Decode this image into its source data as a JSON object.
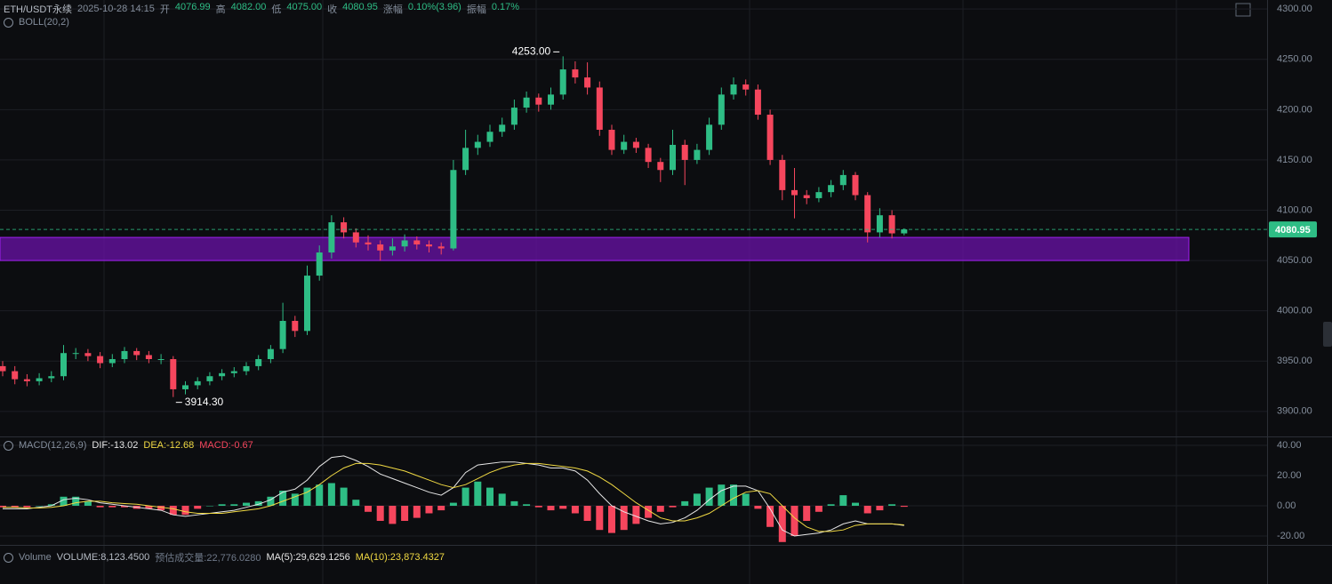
{
  "header": {
    "symbol": "ETH/USDT永续",
    "time": "2025-10-28 14:15",
    "fields": [
      {
        "label": "开",
        "value": "4076.99"
      },
      {
        "label": "高",
        "value": "4082.00"
      },
      {
        "label": "低",
        "value": "4075.00"
      },
      {
        "label": "收",
        "value": "4080.95"
      },
      {
        "label": "涨幅",
        "value": "0.10%(3.96)"
      },
      {
        "label": "振幅",
        "value": "0.17%"
      }
    ]
  },
  "chart_data": [
    {
      "type": "candlestick",
      "indicator": "BOLL(20,2)",
      "up_color": "#2ebd85",
      "down_color": "#f6465d",
      "open": [
        3945,
        3940,
        3932,
        3930,
        3933,
        3935,
        3958,
        3958,
        3955,
        3948,
        3952,
        3960,
        3956,
        3952,
        3952,
        3922,
        3926,
        3930,
        3935,
        3938,
        3940,
        3945,
        3952,
        3962,
        3990,
        3980,
        4035,
        4058,
        4088,
        4078,
        4068,
        4066,
        4060,
        4064,
        4070,
        4066,
        4064,
        4062,
        4140,
        4162,
        4168,
        4178,
        4185,
        4202,
        4212,
        4205,
        4215,
        4240,
        4232,
        4222,
        4180,
        4160,
        4168,
        4162,
        4148,
        4140,
        4165,
        4150,
        4160,
        4185,
        4215,
        4225,
        4220,
        4195,
        4150,
        4120,
        4115,
        4112,
        4118,
        4125,
        4135,
        4115,
        4078,
        4095,
        4076.99
      ],
      "high": [
        3950,
        3945,
        3937,
        3938,
        3940,
        3966,
        3963,
        3962,
        3959,
        3957,
        3964,
        3963,
        3960,
        3957,
        3955,
        3930,
        3934,
        3939,
        3942,
        3944,
        3949,
        3956,
        3966,
        4008,
        3995,
        4045,
        4065,
        4095,
        4093,
        4082,
        4075,
        4070,
        4072,
        4076,
        4074,
        4070,
        4068,
        4150,
        4180,
        4175,
        4185,
        4192,
        4210,
        4218,
        4216,
        4222,
        4253,
        4248,
        4247,
        4228,
        4185,
        4175,
        4172,
        4166,
        4152,
        4180,
        4170,
        4166,
        4192,
        4222,
        4232,
        4230,
        4225,
        4200,
        4155,
        4142,
        4120,
        4123,
        4130,
        4140,
        4138,
        4118,
        4102,
        4100,
        4082
      ],
      "low": [
        3935,
        3927,
        3925,
        3926,
        3929,
        3931,
        3952,
        3950,
        3943,
        3944,
        3948,
        3951,
        3948,
        3947,
        3914.3,
        3917,
        3922,
        3926,
        3931,
        3934,
        3936,
        3941,
        3948,
        3958,
        3974,
        3976,
        4030,
        4052,
        4072,
        4063,
        4060,
        4050,
        4055,
        4059,
        4061,
        4058,
        4056,
        4060,
        4135,
        4155,
        4163,
        4173,
        4180,
        4197,
        4198,
        4200,
        4210,
        4226,
        4215,
        4174,
        4155,
        4156,
        4157,
        4142,
        4128,
        4135,
        4125,
        4146,
        4155,
        4180,
        4210,
        4214,
        4190,
        4145,
        4110,
        4092,
        4106,
        4108,
        4113,
        4120,
        4110,
        4068,
        4073,
        4072,
        4075
      ],
      "close": [
        3940,
        3932,
        3930,
        3933,
        3935,
        3958,
        3958,
        3955,
        3948,
        3952,
        3960,
        3956,
        3952,
        3952,
        3922,
        3926,
        3930,
        3935,
        3938,
        3940,
        3945,
        3952,
        3962,
        3990,
        3980,
        4035,
        4058,
        4088,
        4078,
        4068,
        4066,
        4060,
        4064,
        4070,
        4066,
        4064,
        4062,
        4140,
        4162,
        4168,
        4178,
        4185,
        4202,
        4212,
        4205,
        4215,
        4240,
        4232,
        4222,
        4180,
        4160,
        4168,
        4162,
        4148,
        4140,
        4165,
        4150,
        4160,
        4185,
        4215,
        4225,
        4220,
        4195,
        4150,
        4120,
        4115,
        4112,
        4118,
        4125,
        4135,
        4115,
        4078,
        4095,
        4077,
        4080.95
      ],
      "ylim": [
        3876,
        4309
      ],
      "yticks": [
        {
          "value": 4300,
          "label": "4300.00"
        },
        {
          "value": 4250,
          "label": "4250.00"
        },
        {
          "value": 4200,
          "label": "4200.00"
        },
        {
          "value": 4150,
          "label": "4150.00"
        },
        {
          "value": 4100,
          "label": "4100.00"
        },
        {
          "value": 4050,
          "label": "4050.00"
        },
        {
          "value": 4000,
          "label": "4000.00"
        },
        {
          "value": 3950,
          "label": "3950.00"
        },
        {
          "value": 3900,
          "label": "3900.00"
        }
      ],
      "last_price": {
        "value": 4080.95,
        "label": "4080.95"
      },
      "zone": [
        4050,
        4073
      ],
      "zone_color": "#6a12a8",
      "annotations": [
        {
          "value": 4253,
          "label": "4253.00",
          "kind": "high"
        },
        {
          "value": 3914.3,
          "label": "3914.30",
          "kind": "low"
        }
      ]
    },
    {
      "type": "macd",
      "indicator": "MACD(12,26,9)",
      "ylim": [
        -25.3,
        44.7
      ],
      "yticks": [
        {
          "value": 40,
          "label": "40.00"
        },
        {
          "value": 20,
          "label": "20.00"
        },
        {
          "value": 0,
          "label": "0.00"
        },
        {
          "value": -20,
          "label": "-20.00"
        }
      ],
      "series": [
        {
          "label": "DIF:-13.02",
          "color": "#e6e6e6",
          "values": [
            -2,
            -2,
            -2,
            -1,
            0,
            4,
            5,
            4,
            2,
            1,
            0,
            -1,
            -2,
            -3,
            -6,
            -7,
            -6,
            -5,
            -4,
            -3,
            -1,
            1,
            4,
            9,
            11,
            17,
            26,
            32,
            33,
            30,
            26,
            21,
            18,
            15,
            12,
            9,
            7,
            12,
            22,
            27,
            28,
            29,
            29,
            28,
            27,
            25,
            25,
            23,
            17,
            8,
            0,
            -4,
            -7,
            -10,
            -12,
            -11,
            -8,
            -3,
            4,
            10,
            13,
            13,
            10,
            -2,
            -16,
            -20,
            -19,
            -18,
            -16,
            -12,
            -10,
            -12,
            -12,
            -12,
            -13.02
          ]
        },
        {
          "label": "DEA:-12.68",
          "color": "#f0d943",
          "values": [
            -1,
            -1,
            -1.5,
            -1.5,
            -1,
            0,
            2,
            3,
            3,
            2,
            1.5,
            1,
            0,
            -1,
            -2,
            -4,
            -5,
            -5,
            -5,
            -4,
            -3,
            -2,
            0,
            3,
            6,
            9,
            14,
            20,
            25,
            28,
            28,
            27,
            25,
            23,
            20,
            17,
            14,
            12,
            14,
            18,
            22,
            25,
            27,
            28,
            28,
            27,
            26,
            25,
            23,
            19,
            14,
            8,
            2,
            -3,
            -8,
            -10,
            -10,
            -8,
            -5,
            0,
            5,
            9,
            10,
            8,
            0,
            -8,
            -14,
            -17,
            -17,
            -16,
            -13,
            -12,
            -12,
            -12,
            -12.68
          ]
        }
      ],
      "histogram": {
        "label": "MACD:-0.67",
        "up_color": "#2ebd85",
        "down_color": "#f6465d",
        "values": [
          -1,
          -1,
          -1,
          0,
          1,
          6,
          6,
          3,
          -1,
          -1,
          -1,
          -2,
          -2,
          -3,
          -6,
          -6,
          -2,
          0,
          1,
          1,
          2,
          3,
          6,
          10,
          8,
          12,
          14,
          15,
          12,
          4,
          -4,
          -10,
          -12,
          -10,
          -8,
          -5,
          -3,
          2,
          12,
          16,
          12,
          8,
          3,
          1,
          -1,
          -3,
          -2,
          -5,
          -10,
          -16,
          -18,
          -16,
          -12,
          -8,
          -4,
          -1,
          3,
          8,
          12,
          14,
          14,
          8,
          -2,
          -14,
          -24,
          -20,
          -10,
          -4,
          1,
          7,
          2,
          -5,
          -3,
          1,
          -0.67
        ]
      }
    },
    {
      "type": "volume",
      "indicator": "Volume",
      "labels": [
        {
          "text": "VOLUME:8,123.4500",
          "color": "#b7bdc6"
        },
        {
          "text": "预估成交量:22,776.0280",
          "color": "#707a8a"
        },
        {
          "text": "MA(5):29,629.1256",
          "color": "#e6e6e6"
        },
        {
          "text": "MA(10):23,873.4327",
          "color": "#f0d943"
        }
      ]
    }
  ]
}
